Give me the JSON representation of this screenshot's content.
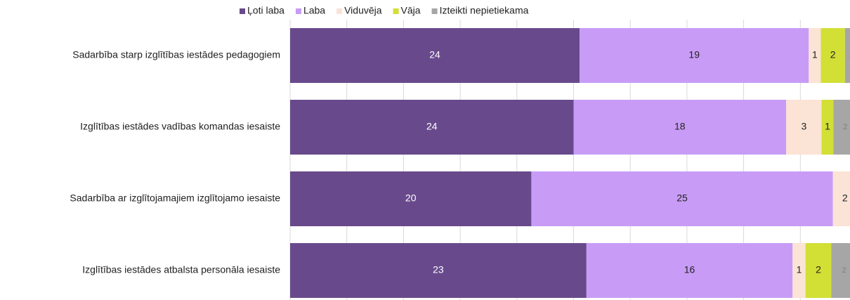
{
  "chart_data": {
    "type": "bar",
    "orientation": "horizontal",
    "stacked100": true,
    "categories": [
      "Sadarbība starp izglītības iestādes pedagogiem",
      "Izglītības iestādes vadības komandas iesaiste",
      "Sadarbība ar izglītojamajiem izglītojamo iesaiste",
      "Izglītības iestādes atbalsta personāla iesaiste"
    ],
    "series": [
      {
        "name": "Ļoti laba",
        "color": "#684a8c",
        "values": [
          24,
          24,
          20,
          23
        ]
      },
      {
        "name": "Laba",
        "color": "#c89cf6",
        "values": [
          19,
          18,
          25,
          16
        ]
      },
      {
        "name": "Viduvēja",
        "color": "#fbe3d6",
        "values": [
          1,
          3,
          2,
          1
        ]
      },
      {
        "name": "Vāja",
        "color": "#d2df35",
        "values": [
          2,
          1,
          0,
          2
        ]
      },
      {
        "name": "Izteikti nepietiekama",
        "color": "#a6a6a6",
        "values": [
          1,
          2,
          0,
          2
        ]
      }
    ],
    "xlim": [
      0,
      100
    ],
    "xticks": [
      0,
      10,
      20,
      30,
      40,
      50,
      60,
      70,
      80,
      90,
      100
    ],
    "grid": true,
    "legend": "top"
  }
}
